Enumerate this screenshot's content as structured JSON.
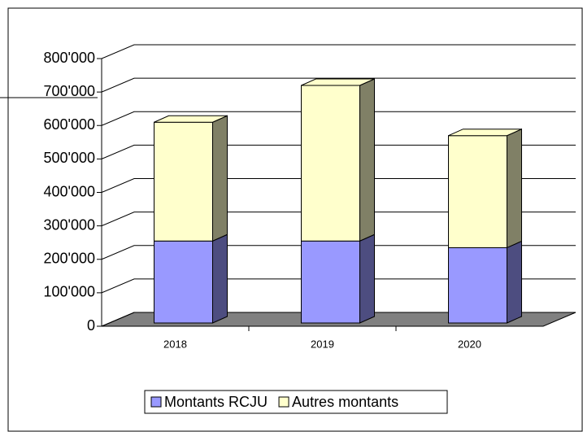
{
  "chart_data": {
    "type": "bar",
    "stacked": true,
    "categories": [
      "2018",
      "2019",
      "2020"
    ],
    "series": [
      {
        "name": "Montants RCJU",
        "color": "#9999ff",
        "values": [
          245000,
          245000,
          225000
        ]
      },
      {
        "name": "Autres montants",
        "color": "#ffffcc",
        "values": [
          355000,
          465000,
          335000
        ]
      }
    ],
    "ylim": [
      0,
      800000
    ],
    "yticks": [
      0,
      {
        "value": 100000,
        "label": "100'000"
      },
      {
        "value": 200000,
        "label": "200'000"
      },
      {
        "value": 300000,
        "label": "300'000"
      },
      {
        "value": 400000,
        "label": "400'000"
      },
      {
        "value": 500000,
        "label": "500'000"
      },
      {
        "value": 600000,
        "label": "600'000"
      },
      {
        "value": 700000,
        "label": "700'000"
      },
      {
        "value": 800000,
        "label": "800'000"
      }
    ],
    "grid": true,
    "legend": "bottom"
  }
}
